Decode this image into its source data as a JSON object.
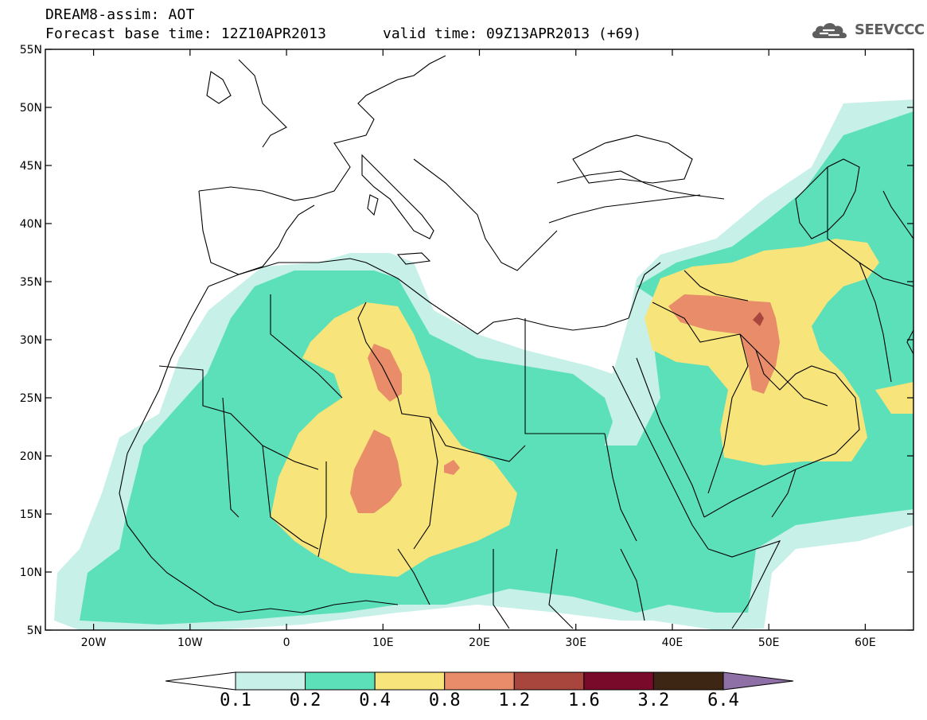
{
  "header": {
    "title_line1": "DREAM8-assim: AOT",
    "title_line2": "Forecast base time: 12Z10APR2013",
    "valid_time": "valid time: 09Z13APR2013 (+69)"
  },
  "logo": {
    "text": "SEEVCCC",
    "icon": "cloud-icon"
  },
  "map": {
    "lat_labels": [
      "55N",
      "50N",
      "45N",
      "40N",
      "35N",
      "30N",
      "25N",
      "20N",
      "15N",
      "10N",
      "5N"
    ],
    "lon_labels": [
      "20W",
      "10W",
      "0",
      "10E",
      "20E",
      "30E",
      "40E",
      "50E",
      "60E"
    ],
    "lon_range": [
      -25,
      65
    ],
    "lat_range": [
      5,
      55
    ]
  },
  "colorbar": {
    "labels": [
      "0.1",
      "0.2",
      "0.4",
      "0.8",
      "1.2",
      "1.6",
      "3.2",
      "6.4"
    ],
    "colors": [
      "#ffffff",
      "#c6f0e8",
      "#5ce0b9",
      "#f7e47a",
      "#e88c6a",
      "#a8463d",
      "#7a0a29",
      "#3e2614",
      "#8e6fa6"
    ]
  }
}
